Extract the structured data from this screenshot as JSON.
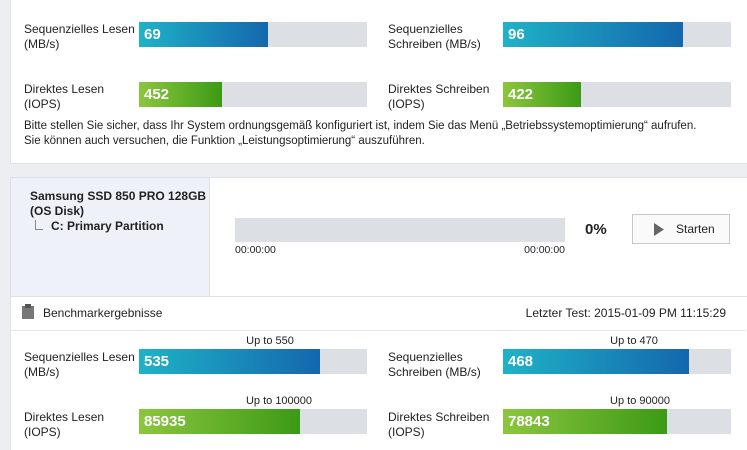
{
  "top_results": {
    "items": [
      {
        "label": "Sequenzielles Lesen (MB/s)",
        "value": 69
      },
      {
        "label": "Sequenzielles Schreiben (MB/s)",
        "value": 96
      },
      {
        "label": "Direktes Lesen (IOPS)",
        "value": 452
      },
      {
        "label": "Direktes Schreiben (IOPS)",
        "value": 422
      }
    ],
    "notice": [
      "Bitte stellen Sie sicher, dass Ihr System ordnungsgemäß konfiguriert ist, indem Sie das Menü „Betriebssystemoptimierung“ aufrufen.",
      "Sie können auch versuchen, die Funktion „Leistungsoptimierung“ auszuführen."
    ]
  },
  "device": {
    "name": "Samsung SSD 850 PRO 128GB",
    "type": "(OS Disk)",
    "partition": "C: Primary Partition",
    "progress": "0%",
    "time_start": "00:00:00",
    "time_end": "00:00:00",
    "button": "Starten"
  },
  "benchmark": {
    "title": "Benchmarkergebnisse",
    "last_test": "Letzter Test: 2015-01-09 PM 11:15:29",
    "items": [
      {
        "label": "Sequenzielles Lesen (MB/s)",
        "value": 535,
        "limit": "Up to 550"
      },
      {
        "label": "Sequenzielles Schreiben (MB/s)",
        "value": 468,
        "limit": "Up to 470"
      },
      {
        "label": "Direktes Lesen (IOPS)",
        "value": 85935,
        "limit": "Up to 100000"
      },
      {
        "label": "Direktes Schreiben (IOPS)",
        "value": 78843,
        "limit": "Up to 90000"
      }
    ]
  }
}
